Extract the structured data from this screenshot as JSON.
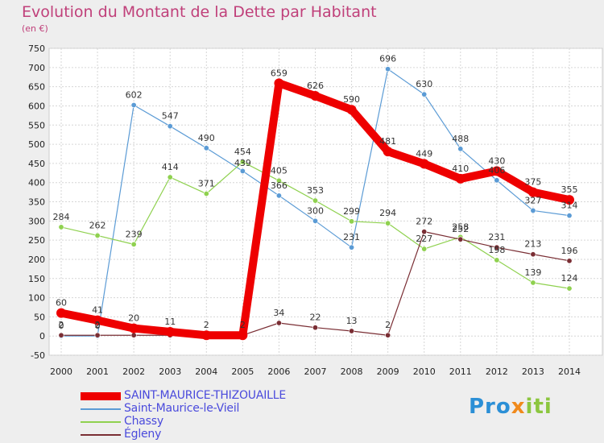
{
  "chart_data": {
    "type": "line",
    "title": "Evolution du Montant de la Dette par Habitant",
    "unit": "(en €)",
    "x": [
      "2000",
      "2001",
      "2002",
      "2003",
      "2004",
      "2005",
      "2006",
      "2007",
      "2008",
      "2009",
      "2010",
      "2011",
      "2012",
      "2013",
      "2014"
    ],
    "y_ticks": [
      "-50",
      "0",
      "50",
      "100",
      "150",
      "200",
      "250",
      "300",
      "350",
      "400",
      "450",
      "500",
      "550",
      "600",
      "650",
      "700",
      "750"
    ],
    "ylim": [
      -50,
      750
    ],
    "grid": true,
    "legend_position": "bottom-left",
    "series": [
      {
        "name": "SAINT-MAURICE-THIZOUAILLE",
        "color": "#ee0000",
        "values": [
          60,
          41,
          20,
          11,
          2,
          2,
          659,
          626,
          590,
          481,
          449,
          410,
          430,
          375,
          355
        ],
        "labels": [
          "60",
          "41",
          "20",
          "11",
          "2",
          "2",
          "659",
          "626",
          "590",
          "481",
          "449",
          "410",
          "430",
          "375",
          "355"
        ]
      },
      {
        "name": "Saint-Maurice-le-Vieil",
        "color": "#5b9bd5",
        "values": [
          0,
          0,
          602,
          547,
          490,
          430,
          366,
          300,
          231,
          696,
          630,
          488,
          406,
          327,
          314
        ],
        "labels": [
          "0",
          "0",
          "602",
          "547",
          "490",
          "",
          "366",
          "300",
          "231",
          "696",
          "630",
          "488",
          "406",
          "327",
          "314"
        ]
      },
      {
        "name": "Chassy",
        "color": "#8fd14f",
        "values": [
          284,
          262,
          239,
          414,
          371,
          454,
          405,
          353,
          299,
          294,
          227,
          258,
          198,
          139,
          124
        ],
        "labels": [
          "284",
          "262",
          "239",
          "414",
          "371",
          "454",
          "405",
          "353",
          "299",
          "294",
          "227",
          "258",
          "198",
          "139",
          "124"
        ]
      },
      {
        "name": "Égleny",
        "color": "#7a2e34",
        "values": [
          2,
          2,
          2,
          2,
          2,
          2,
          34,
          22,
          13,
          2,
          272,
          252,
          231,
          213,
          196
        ],
        "labels": [
          "2",
          "2",
          "",
          "",
          "",
          "",
          "34",
          "22",
          "13",
          "2",
          "272",
          "252",
          "231",
          "213",
          "196"
        ]
      }
    ]
  },
  "extra_labels": [
    "439"
  ],
  "brand": {
    "p1": "Pro",
    "p2": "x",
    "p3": "iti"
  }
}
